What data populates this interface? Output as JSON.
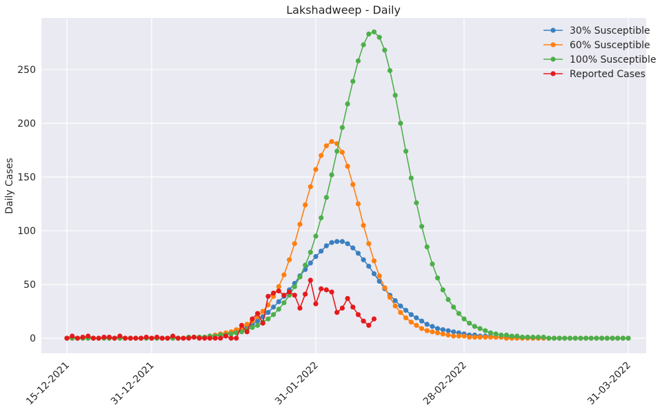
{
  "chart_data": {
    "type": "line",
    "title": "Lakshadweep - Daily",
    "xlabel": "",
    "ylabel": "Daily Cases",
    "x_start": "2021-12-15",
    "x_end": "2022-03-31",
    "x_ticks": [
      "15-12-2021",
      "31-12-2021",
      "31-01-2022",
      "28-02-2022",
      "31-03-2022"
    ],
    "y_ticks": [
      0,
      50,
      100,
      150,
      200,
      250
    ],
    "ylim": [
      -14,
      298
    ],
    "grid": true,
    "legend_position": "top-right",
    "series": [
      {
        "name": "30% Susceptible",
        "color": "#3a7fbf",
        "start_date": "2021-12-15",
        "values": [
          0,
          0,
          0,
          0,
          0,
          0,
          0,
          0,
          0,
          0,
          0,
          0,
          0,
          0,
          0,
          0,
          0,
          0,
          0,
          0,
          0,
          0,
          0,
          1,
          1,
          1,
          1,
          2,
          2,
          3,
          4,
          5,
          6,
          8,
          10,
          13,
          16,
          20,
          24,
          29,
          34,
          39,
          45,
          51,
          58,
          64,
          70,
          76,
          81,
          86,
          89,
          90,
          90,
          88,
          84,
          79,
          73,
          67,
          60,
          53,
          46,
          40,
          35,
          30,
          26,
          22,
          19,
          16,
          13,
          11,
          9,
          8,
          7,
          6,
          5,
          4,
          3,
          3,
          2,
          2,
          2,
          1,
          1,
          1,
          1,
          1,
          1,
          1,
          0,
          0,
          0,
          0,
          0,
          0,
          0,
          0,
          0,
          0,
          0,
          0,
          0,
          0,
          0,
          0,
          0,
          0,
          0
        ]
      },
      {
        "name": "60% Susceptible",
        "color": "#ff7f0e",
        "start_date": "2021-12-15",
        "values": [
          0,
          0,
          0,
          0,
          0,
          0,
          0,
          0,
          0,
          0,
          0,
          0,
          0,
          0,
          0,
          0,
          0,
          0,
          0,
          0,
          0,
          0,
          0,
          1,
          1,
          1,
          1,
          2,
          3,
          4,
          5,
          6,
          8,
          10,
          13,
          16,
          20,
          25,
          31,
          39,
          48,
          59,
          73,
          88,
          106,
          124,
          141,
          157,
          170,
          179,
          183,
          181,
          173,
          160,
          143,
          125,
          105,
          88,
          72,
          58,
          47,
          38,
          30,
          24,
          19,
          15,
          12,
          9,
          7,
          6,
          5,
          4,
          3,
          2,
          2,
          2,
          1,
          1,
          1,
          1,
          1,
          1,
          1,
          0,
          0,
          0,
          0,
          0,
          0,
          0,
          0,
          0,
          0,
          0,
          0,
          0,
          0,
          0,
          0,
          0,
          0,
          0,
          0,
          0,
          0,
          0,
          0
        ]
      },
      {
        "name": "100% Susceptible",
        "color": "#4daf4a",
        "start_date": "2021-12-15",
        "values": [
          0,
          0,
          0,
          0,
          0,
          0,
          0,
          0,
          0,
          0,
          0,
          0,
          0,
          0,
          0,
          0,
          0,
          0,
          0,
          0,
          0,
          0,
          0,
          1,
          1,
          1,
          1,
          2,
          2,
          3,
          3,
          4,
          5,
          6,
          8,
          10,
          12,
          15,
          18,
          22,
          27,
          33,
          40,
          48,
          57,
          68,
          80,
          95,
          112,
          131,
          152,
          174,
          196,
          218,
          239,
          258,
          273,
          283,
          285,
          280,
          268,
          249,
          226,
          200,
          174,
          149,
          126,
          104,
          85,
          69,
          56,
          45,
          36,
          29,
          23,
          18,
          14,
          11,
          9,
          7,
          5,
          4,
          3,
          3,
          2,
          2,
          1,
          1,
          1,
          1,
          1,
          0,
          0,
          0,
          0,
          0,
          0,
          0,
          0,
          0,
          0,
          0,
          0,
          0,
          0,
          0,
          0
        ]
      },
      {
        "name": "Reported Cases",
        "color": "#e41a1c",
        "start_date": "2021-12-15",
        "values": [
          0,
          2,
          0,
          1,
          2,
          0,
          0,
          1,
          1,
          0,
          2,
          0,
          0,
          0,
          0,
          1,
          0,
          1,
          0,
          0,
          2,
          0,
          0,
          0,
          1,
          0,
          0,
          0,
          0,
          0,
          2,
          0,
          0,
          12,
          6,
          18,
          23,
          14,
          39,
          42,
          44,
          40,
          43,
          40,
          28,
          41,
          54,
          32,
          46,
          45,
          43,
          24,
          28,
          37,
          29,
          22,
          16,
          12,
          18
        ]
      }
    ]
  }
}
